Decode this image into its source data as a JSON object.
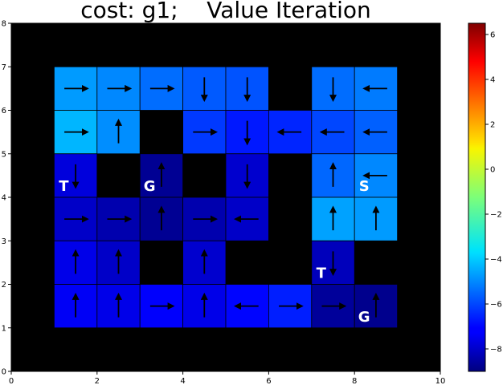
{
  "chart_data": {
    "type": "heatmap",
    "title": "cost: g1;    Value Iteration",
    "xlim": [
      0,
      10
    ],
    "ylim": [
      0,
      8
    ],
    "x_ticks": [
      0,
      2,
      4,
      6,
      8,
      10
    ],
    "y_ticks": [
      0,
      1,
      2,
      3,
      4,
      5,
      6,
      7,
      8
    ],
    "colorbar": {
      "min": -9.0,
      "max": 6.5,
      "ticks": [
        -8,
        -6,
        -4,
        -2,
        0,
        2,
        4,
        6
      ],
      "tick_labels": [
        "−8",
        "−6",
        "−4",
        "−2",
        "0",
        "2",
        "4",
        "6"
      ]
    },
    "colormap": "jet",
    "background_color": "#000000",
    "grid": false,
    "cells": [
      {
        "x": 1,
        "y": 6,
        "value": -4.7,
        "arrow": "right"
      },
      {
        "x": 2,
        "y": 6,
        "value": -5.0,
        "arrow": "right"
      },
      {
        "x": 3,
        "y": 6,
        "value": -5.4,
        "arrow": "right"
      },
      {
        "x": 4,
        "y": 6,
        "value": -5.7,
        "arrow": "down"
      },
      {
        "x": 5,
        "y": 6,
        "value": -5.8,
        "arrow": "down"
      },
      {
        "x": 7,
        "y": 6,
        "value": -5.4,
        "arrow": "down"
      },
      {
        "x": 8,
        "y": 6,
        "value": -5.2,
        "arrow": "left"
      },
      {
        "x": 1,
        "y": 5,
        "value": -4.3,
        "arrow": "right"
      },
      {
        "x": 2,
        "y": 5,
        "value": -4.9,
        "arrow": "up"
      },
      {
        "x": 4,
        "y": 5,
        "value": -6.2,
        "arrow": "right"
      },
      {
        "x": 5,
        "y": 5,
        "value": -6.7,
        "arrow": "down"
      },
      {
        "x": 6,
        "y": 5,
        "value": -6.5,
        "arrow": "left"
      },
      {
        "x": 7,
        "y": 5,
        "value": -6.0,
        "arrow": "left"
      },
      {
        "x": 8,
        "y": 5,
        "value": -5.6,
        "arrow": "left"
      },
      {
        "x": 1,
        "y": 4,
        "value": -7.6,
        "arrow": "down",
        "label": "T"
      },
      {
        "x": 3,
        "y": 4,
        "value": -8.7,
        "arrow": "up",
        "label": "G"
      },
      {
        "x": 5,
        "y": 4,
        "value": -7.8,
        "arrow": "down"
      },
      {
        "x": 7,
        "y": 4,
        "value": -5.5,
        "arrow": "up"
      },
      {
        "x": 8,
        "y": 4,
        "value": -5.0,
        "arrow": "left",
        "label": "S"
      },
      {
        "x": 1,
        "y": 3,
        "value": -7.9,
        "arrow": "right"
      },
      {
        "x": 2,
        "y": 3,
        "value": -8.3,
        "arrow": "right"
      },
      {
        "x": 3,
        "y": 3,
        "value": -8.7,
        "arrow": "up"
      },
      {
        "x": 4,
        "y": 3,
        "value": -8.3,
        "arrow": "right"
      },
      {
        "x": 5,
        "y": 3,
        "value": -7.9,
        "arrow": "left"
      },
      {
        "x": 7,
        "y": 3,
        "value": -4.6,
        "arrow": "up"
      },
      {
        "x": 8,
        "y": 3,
        "value": -4.7,
        "arrow": "up"
      },
      {
        "x": 1,
        "y": 2,
        "value": -7.4,
        "arrow": "up"
      },
      {
        "x": 2,
        "y": 2,
        "value": -7.9,
        "arrow": "up"
      },
      {
        "x": 4,
        "y": 2,
        "value": -7.8,
        "arrow": "up"
      },
      {
        "x": 7,
        "y": 2,
        "value": -8.1,
        "arrow": "down",
        "label": "T"
      },
      {
        "x": 1,
        "y": 1,
        "value": -7.2,
        "arrow": "up"
      },
      {
        "x": 2,
        "y": 1,
        "value": -7.4,
        "arrow": "up"
      },
      {
        "x": 3,
        "y": 1,
        "value": -7.1,
        "arrow": "right"
      },
      {
        "x": 4,
        "y": 1,
        "value": -7.4,
        "arrow": "up"
      },
      {
        "x": 5,
        "y": 1,
        "value": -7.0,
        "arrow": "left"
      },
      {
        "x": 6,
        "y": 1,
        "value": -6.6,
        "arrow": "right"
      },
      {
        "x": 7,
        "y": 1,
        "value": -8.6,
        "arrow": "right"
      },
      {
        "x": 8,
        "y": 1,
        "value": -8.8,
        "arrow": "up",
        "label": "G"
      }
    ]
  }
}
